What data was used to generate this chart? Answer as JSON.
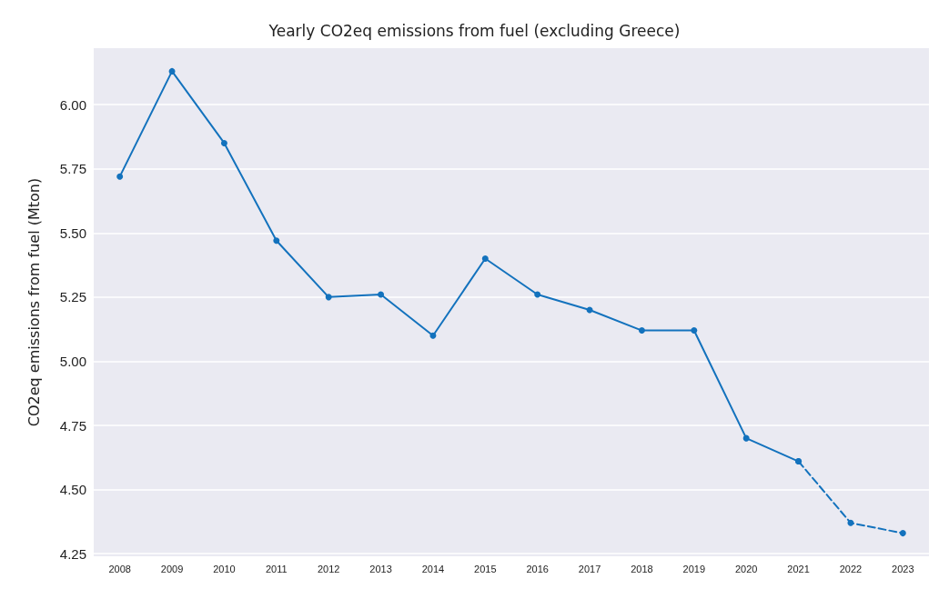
{
  "chart_data": {
    "type": "line",
    "title": "Yearly CO2eq emissions from fuel (excluding Greece)",
    "ylabel": "CO2eq emissions from fuel (Mton)",
    "categories": [
      "2008",
      "2009",
      "2010",
      "2011",
      "2012",
      "2013",
      "2014",
      "2015",
      "2016",
      "2017",
      "2018",
      "2019",
      "2020",
      "2021",
      "2022",
      "2023"
    ],
    "series": [
      {
        "color": "#1372bd",
        "line_style": "solid",
        "values": [
          5.72,
          6.13,
          5.85,
          5.47,
          5.25,
          5.26,
          5.1,
          5.4,
          5.26,
          5.2,
          5.12,
          5.12,
          4.7,
          4.61,
          null,
          null
        ]
      },
      {
        "color": "#1372bd",
        "line_style": "dashed",
        "values": [
          null,
          null,
          null,
          null,
          null,
          null,
          null,
          null,
          null,
          null,
          null,
          null,
          null,
          4.61,
          4.37,
          4.33
        ]
      }
    ],
    "ylim": [
      4.24,
      6.22
    ],
    "yticks": [
      {
        "value": 4.25,
        "label": "4.25"
      },
      {
        "value": 4.5,
        "label": "4.50"
      },
      {
        "value": 4.75,
        "label": "4.75"
      },
      {
        "value": 5,
        "label": "5.00"
      },
      {
        "value": 5.25,
        "label": "5.25"
      },
      {
        "value": 5.5,
        "label": "5.50"
      },
      {
        "value": 5.75,
        "label": "5.75"
      },
      {
        "value": 6,
        "label": "6.00"
      }
    ],
    "grid": "y",
    "marker": "circle"
  }
}
